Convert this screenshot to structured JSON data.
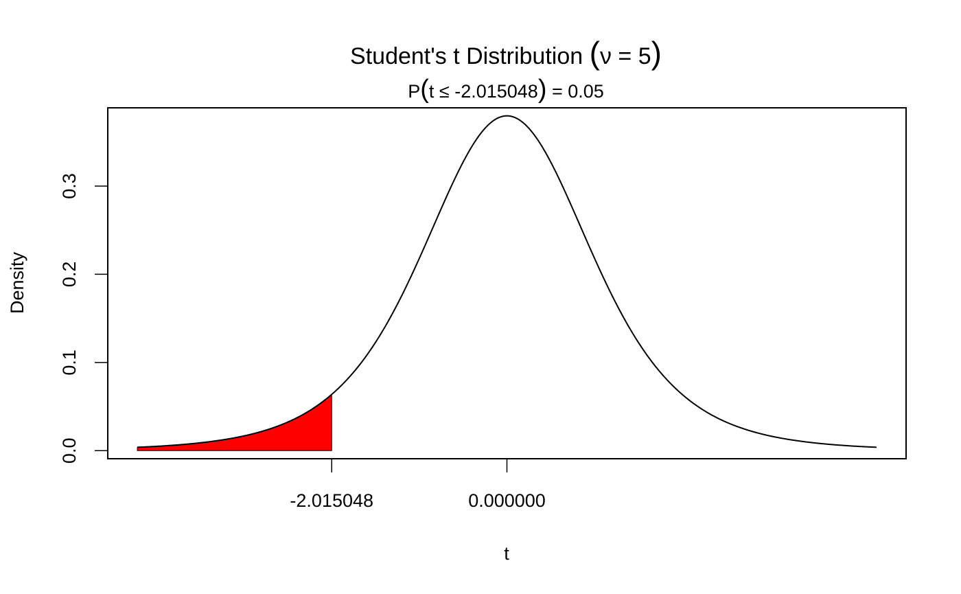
{
  "chart_data": {
    "type": "area",
    "title": {
      "main": "Student's t Distribution ",
      "open_paren": "(",
      "nu": "ν",
      "equals": " = ",
      "df_value": "5",
      "close_paren": ")"
    },
    "subtitle": {
      "prefix": "P",
      "open_paren": "(",
      "inner": "t ≤ -2.015048",
      "close_paren": ")",
      "suffix": " = 0.05"
    },
    "xlabel": "t",
    "ylabel": "Density",
    "df": 5,
    "critical_value": -2.015048,
    "probability": 0.05,
    "xlim": [
      -4.59,
      4.59
    ],
    "ylim": [
      -0.0091,
      0.3887
    ],
    "curve_range": [
      -4.25,
      4.25
    ],
    "shade_range": [
      -4.25,
      -2.015048
    ],
    "shade_color": "#ff0000",
    "line_color": "#000000",
    "x_ticks": [
      {
        "value": -2.015048,
        "label": "-2.015048"
      },
      {
        "value": 0,
        "label": "0.000000"
      }
    ],
    "y_ticks": [
      {
        "value": 0.0,
        "label": "0.0"
      },
      {
        "value": 0.1,
        "label": "0.1"
      },
      {
        "value": 0.2,
        "label": "0.2"
      },
      {
        "value": 0.3,
        "label": "0.3"
      }
    ],
    "grid": false,
    "legend": "none"
  }
}
